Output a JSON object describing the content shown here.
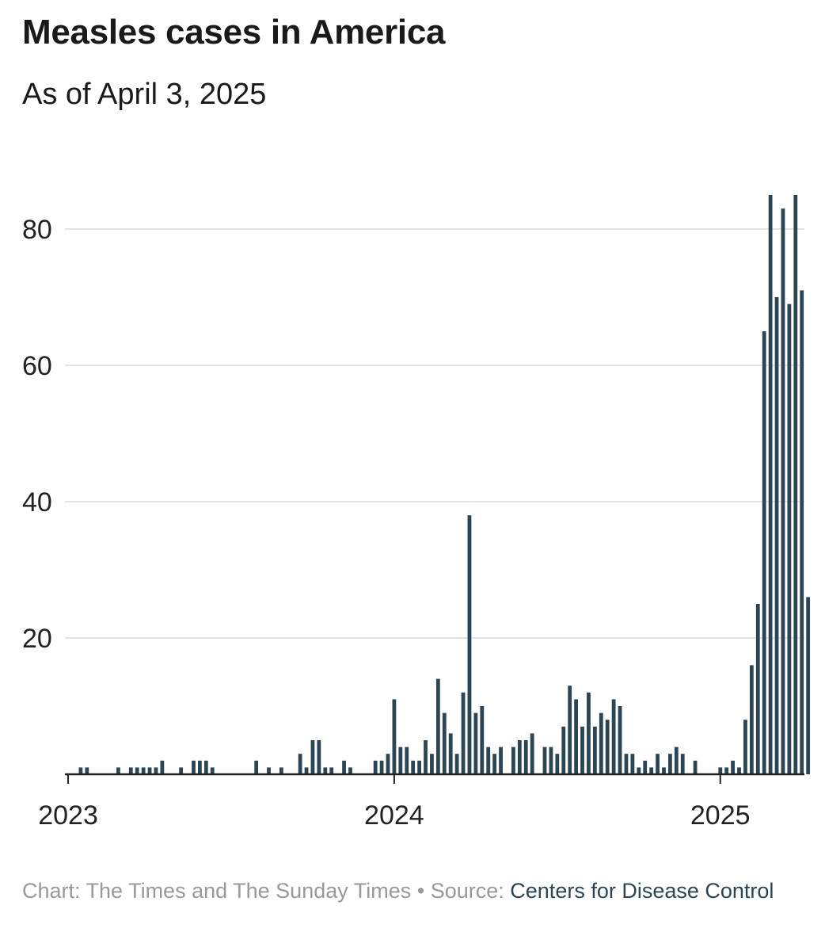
{
  "title": "Measles cases in America",
  "subtitle": "As of April 3, 2025",
  "footer": {
    "chart_label": "Chart: The Times and The Sunday Times",
    "separator": " • ",
    "source_label": "Source: ",
    "source_name": "Centers for Disease Control"
  },
  "colors": {
    "bar": "#2b4554",
    "grid": "#e3e3e3",
    "axis": "#222222"
  },
  "chart_data": {
    "type": "bar",
    "title": "Measles cases in America",
    "subtitle": "As of April 3, 2025",
    "xlabel": "",
    "ylabel": "",
    "frequency": "weekly",
    "start": "2023-01",
    "ylim": [
      0,
      90
    ],
    "y_ticks": [
      20,
      40,
      60,
      80
    ],
    "x_ticks": [
      "2023",
      "2024",
      "2025"
    ],
    "x_tick_week_index": [
      0,
      52,
      104
    ],
    "grid": true,
    "values": [
      0,
      1,
      1,
      0,
      0,
      0,
      0,
      1,
      0,
      1,
      1,
      1,
      1,
      1,
      2,
      0,
      0,
      1,
      0,
      2,
      2,
      2,
      1,
      0,
      0,
      0,
      0,
      0,
      0,
      2,
      0,
      1,
      0,
      1,
      0,
      0,
      3,
      1,
      5,
      5,
      1,
      1,
      0,
      2,
      1,
      0,
      0,
      0,
      2,
      2,
      3,
      11,
      4,
      4,
      2,
      2,
      5,
      3,
      14,
      9,
      6,
      3,
      12,
      38,
      9,
      10,
      4,
      3,
      4,
      0,
      4,
      5,
      5,
      6,
      0,
      4,
      4,
      3,
      7,
      13,
      11,
      7,
      12,
      7,
      9,
      8,
      11,
      10,
      3,
      3,
      1,
      2,
      1,
      3,
      1,
      3,
      4,
      3,
      0,
      2,
      0,
      0,
      0,
      1,
      1,
      2,
      1,
      8,
      16,
      25,
      65,
      85,
      70,
      83,
      69,
      85,
      71,
      26
    ]
  }
}
